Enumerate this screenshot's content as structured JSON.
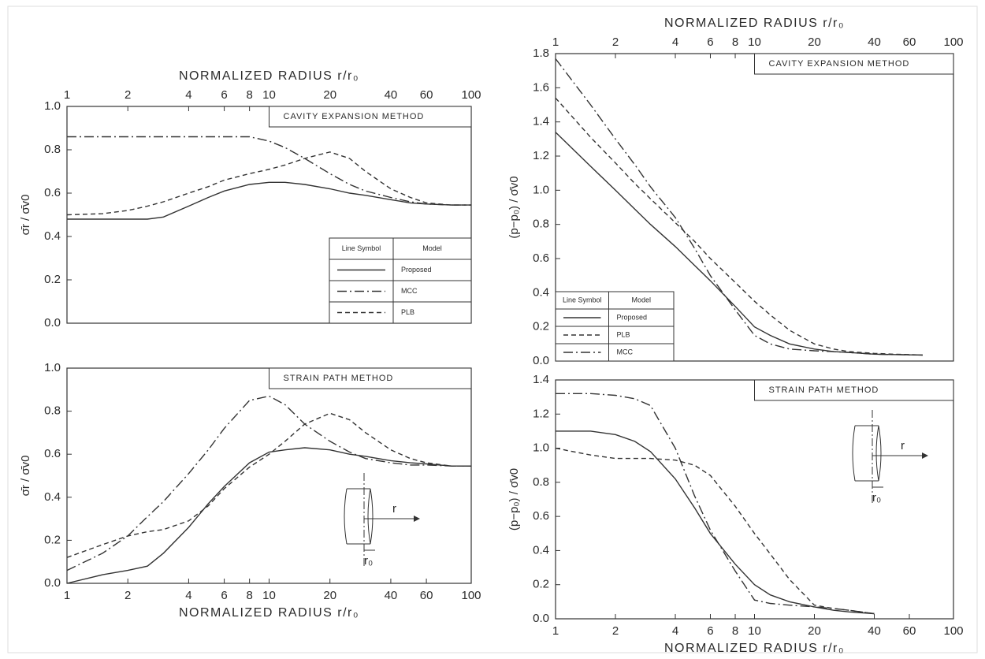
{
  "chart_data": [
    {
      "type": "line",
      "title": "CAVITY EXPANSION METHOD",
      "xlabel": "NORMALIZED RADIUS r/r₀",
      "ylabel": "σ̄r / σ̄v0",
      "xaxis_position": "top",
      "log_x": true,
      "xlim": [
        1,
        100
      ],
      "ylim": [
        0,
        1
      ],
      "xticks": [
        1,
        2,
        4,
        6,
        8,
        10,
        20,
        40,
        60,
        100
      ],
      "yticks": [
        {
          "value": 0,
          "label": "0.0"
        },
        0.2,
        0.4,
        0.6,
        0.8,
        {
          "value": 1,
          "label": "1.0"
        }
      ],
      "legend_position": "lower right",
      "legend_header": {
        "symbol": "Line Symbol",
        "model": "Model"
      },
      "x": [
        1,
        1.5,
        2,
        2.5,
        3,
        4,
        5,
        6,
        8,
        10,
        12,
        15,
        20,
        25,
        30,
        40,
        50,
        60,
        80,
        100
      ],
      "series": [
        {
          "name": "Proposed",
          "color": "#333333",
          "dash": "solid",
          "values": [
            0.48,
            0.48,
            0.48,
            0.48,
            0.49,
            0.54,
            0.58,
            0.61,
            0.64,
            0.65,
            0.65,
            0.64,
            0.62,
            0.6,
            0.59,
            0.57,
            0.555,
            0.55,
            0.545,
            0.545
          ]
        },
        {
          "name": "MCC",
          "color": "#333333",
          "dash": "dashdot",
          "values": [
            0.86,
            0.86,
            0.86,
            0.86,
            0.86,
            0.86,
            0.86,
            0.86,
            0.86,
            0.84,
            0.81,
            0.76,
            0.69,
            0.64,
            0.61,
            0.58,
            0.56,
            0.55,
            0.545,
            0.545
          ]
        },
        {
          "name": "PLB",
          "color": "#333333",
          "dash": "dashed",
          "values": [
            0.5,
            0.505,
            0.52,
            0.54,
            0.56,
            0.6,
            0.63,
            0.66,
            0.69,
            0.71,
            0.73,
            0.76,
            0.79,
            0.76,
            0.7,
            0.62,
            0.58,
            0.555,
            0.545,
            0.545
          ]
        }
      ]
    },
    {
      "type": "line",
      "title": "STRAIN PATH METHOD",
      "xlabel": "NORMALIZED RADIUS r/r₀",
      "ylabel": "σ̄r / σ̄v0",
      "xaxis_position": "bottom",
      "log_x": true,
      "xlim": [
        1,
        100
      ],
      "ylim": [
        0,
        1
      ],
      "xticks": [
        1,
        2,
        4,
        6,
        8,
        10,
        20,
        40,
        60,
        100
      ],
      "yticks": [
        {
          "value": 0,
          "label": "0.0"
        },
        0.2,
        0.4,
        0.6,
        0.8,
        {
          "value": 1,
          "label": "1.0"
        }
      ],
      "annotations": [
        "r",
        "r₀"
      ],
      "x": [
        1,
        1.5,
        2,
        2.5,
        3,
        4,
        5,
        6,
        8,
        10,
        12,
        15,
        20,
        25,
        30,
        40,
        50,
        60,
        80,
        100
      ],
      "series": [
        {
          "color": "#333333",
          "dash": "solid",
          "values": [
            0.0,
            0.04,
            0.06,
            0.08,
            0.14,
            0.26,
            0.37,
            0.45,
            0.56,
            0.61,
            0.62,
            0.63,
            0.62,
            0.6,
            0.59,
            0.57,
            0.56,
            0.555,
            0.545,
            0.545
          ]
        },
        {
          "color": "#333333",
          "dash": "dashdot",
          "values": [
            0.06,
            0.14,
            0.22,
            0.31,
            0.38,
            0.51,
            0.62,
            0.72,
            0.85,
            0.87,
            0.83,
            0.74,
            0.66,
            0.61,
            0.58,
            0.56,
            0.55,
            0.55,
            0.545,
            0.545
          ]
        },
        {
          "color": "#333333",
          "dash": "dashed",
          "values": [
            0.12,
            0.18,
            0.22,
            0.24,
            0.25,
            0.29,
            0.36,
            0.44,
            0.54,
            0.6,
            0.66,
            0.74,
            0.79,
            0.76,
            0.7,
            0.62,
            0.58,
            0.56,
            0.545,
            0.545
          ]
        }
      ]
    },
    {
      "type": "line",
      "title": "CAVITY EXPANSION METHOD",
      "xlabel": "NORMALIZED RADIUS r/r₀",
      "ylabel": "(p−p₀) / σ̄v0",
      "xaxis_position": "top",
      "log_x": true,
      "xlim": [
        1,
        100
      ],
      "ylim": [
        0,
        1.8
      ],
      "xticks": [
        1,
        2,
        4,
        6,
        8,
        10,
        20,
        40,
        60,
        100
      ],
      "yticks": [
        {
          "value": 0,
          "label": "0.0"
        },
        0.2,
        0.4,
        0.6,
        0.8,
        {
          "value": 1,
          "label": "1.0"
        },
        1.2,
        1.4,
        1.6,
        1.8
      ],
      "legend_position": "lower left",
      "legend_header": {
        "symbol": "Line Symbol",
        "model": "Model"
      },
      "x": [
        1,
        1.5,
        2,
        2.5,
        3,
        4,
        5,
        6,
        8,
        10,
        12,
        15,
        20,
        25,
        30,
        40,
        50,
        70
      ],
      "series": [
        {
          "name": "Proposed",
          "color": "#333333",
          "dash": "solid",
          "values": [
            1.34,
            1.14,
            1.0,
            0.89,
            0.8,
            0.67,
            0.56,
            0.47,
            0.32,
            0.2,
            0.15,
            0.1,
            0.07,
            0.055,
            0.05,
            0.04,
            0.038,
            0.035
          ]
        },
        {
          "name": "PLB",
          "color": "#333333",
          "dash": "dashed",
          "values": [
            1.54,
            1.31,
            1.16,
            1.04,
            0.95,
            0.81,
            0.7,
            0.6,
            0.46,
            0.35,
            0.27,
            0.18,
            0.1,
            0.07,
            0.055,
            0.045,
            0.04,
            0.035
          ]
        },
        {
          "name": "MCC",
          "color": "#333333",
          "dash": "dashdot",
          "values": [
            1.77,
            1.5,
            1.3,
            1.15,
            1.02,
            0.84,
            0.66,
            0.5,
            0.3,
            0.15,
            0.1,
            0.07,
            0.06,
            0.055,
            0.05,
            0.04,
            0.038,
            0.035
          ]
        }
      ]
    },
    {
      "type": "line",
      "title": "STRAIN PATH METHOD",
      "xlabel": "NORMALIZED RADIUS r/r₀",
      "ylabel": "(p−p₀) / σ̄v0",
      "xaxis_position": "bottom",
      "log_x": true,
      "xlim": [
        1,
        100
      ],
      "ylim": [
        0,
        1.4
      ],
      "xticks": [
        1,
        2,
        4,
        6,
        8,
        10,
        20,
        40,
        60,
        100
      ],
      "yticks": [
        {
          "value": 0,
          "label": "0.0"
        },
        0.2,
        0.4,
        0.6,
        0.8,
        {
          "value": 1,
          "label": "1.0"
        },
        1.2,
        1.4
      ],
      "annotations": [
        "r",
        "r₀"
      ],
      "x": [
        1,
        1.5,
        2,
        2.5,
        3,
        4,
        5,
        6,
        8,
        10,
        12,
        15,
        20,
        25,
        30,
        40
      ],
      "series": [
        {
          "color": "#333333",
          "dash": "solid",
          "values": [
            1.1,
            1.1,
            1.08,
            1.04,
            0.98,
            0.82,
            0.65,
            0.5,
            0.32,
            0.2,
            0.14,
            0.1,
            0.07,
            0.05,
            0.04,
            0.03
          ]
        },
        {
          "color": "#333333",
          "dash": "dashdot",
          "values": [
            1.32,
            1.32,
            1.31,
            1.29,
            1.25,
            1.0,
            0.72,
            0.52,
            0.28,
            0.11,
            0.09,
            0.08,
            0.07,
            0.06,
            0.05,
            0.03
          ]
        },
        {
          "color": "#333333",
          "dash": "dashed",
          "values": [
            1.0,
            0.96,
            0.94,
            0.94,
            0.94,
            0.93,
            0.9,
            0.84,
            0.66,
            0.5,
            0.38,
            0.23,
            0.08,
            0.06,
            0.05,
            0.03
          ]
        }
      ]
    }
  ]
}
